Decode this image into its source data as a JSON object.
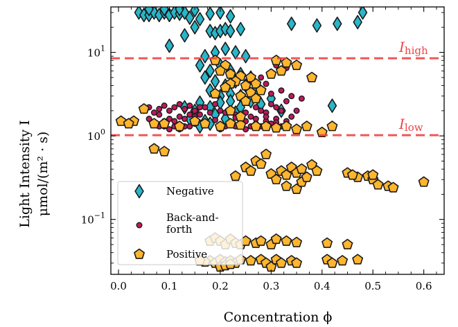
{
  "chart_data": {
    "type": "scatter",
    "xlabel": "Concentration ϕ",
    "ylabel_line1": "Light Intensity I",
    "ylabel_line2": "μmol/(m² · s)",
    "xlim": [
      -0.015,
      0.64
    ],
    "ylim": [
      0.022,
      35
    ],
    "yscale": "log",
    "grid": false,
    "legend_position": "bottom-left",
    "x_ticks": [
      0.0,
      0.1,
      0.2,
      0.3,
      0.4,
      0.5,
      0.6
    ],
    "x_tick_labels": [
      "0.0",
      "0.1",
      "0.2",
      "0.3",
      "0.4",
      "0.5",
      "0.6"
    ],
    "y_ticks": [
      0.1,
      1,
      10
    ],
    "y_tick_labels": [
      {
        "base": "10",
        "exp": "−1"
      },
      {
        "base": "10",
        "exp": "0"
      },
      {
        "base": "10",
        "exp": "1"
      }
    ],
    "reference_lines": [
      {
        "name": "I",
        "sub": "high",
        "y": 8.5,
        "color": "#ee4444"
      },
      {
        "name": "I",
        "sub": "low",
        "y": 1.02,
        "color": "#ee4444"
      }
    ],
    "series": [
      {
        "name": "Negative",
        "marker": "diamond",
        "color": "#29b6c9",
        "edge": "#1a1a1a",
        "points": [
          [
            0.04,
            30
          ],
          [
            0.05,
            28
          ],
          [
            0.06,
            28
          ],
          [
            0.07,
            30
          ],
          [
            0.08,
            28
          ],
          [
            0.09,
            30
          ],
          [
            0.1,
            28
          ],
          [
            0.11,
            30
          ],
          [
            0.12,
            29
          ],
          [
            0.13,
            30
          ],
          [
            0.06,
            33
          ],
          [
            0.09,
            33
          ],
          [
            0.12,
            33
          ],
          [
            0.15,
            32
          ],
          [
            0.14,
            26
          ],
          [
            0.16,
            25
          ],
          [
            0.18,
            29
          ],
          [
            0.2,
            30
          ],
          [
            0.22,
            27
          ],
          [
            0.1,
            12
          ],
          [
            0.15,
            20
          ],
          [
            0.18,
            18
          ],
          [
            0.19,
            17
          ],
          [
            0.2,
            18
          ],
          [
            0.21,
            19
          ],
          [
            0.22,
            18
          ],
          [
            0.24,
            19
          ],
          [
            0.13,
            16
          ],
          [
            0.17,
            9
          ],
          [
            0.19,
            10
          ],
          [
            0.21,
            11
          ],
          [
            0.23,
            10
          ],
          [
            0.25,
            9
          ],
          [
            0.16,
            7
          ],
          [
            0.18,
            6
          ],
          [
            0.2,
            7
          ],
          [
            0.22,
            6
          ],
          [
            0.24,
            5.5
          ],
          [
            0.26,
            5
          ],
          [
            0.17,
            5
          ],
          [
            0.19,
            4.5
          ],
          [
            0.21,
            4
          ],
          [
            0.23,
            4.5
          ],
          [
            0.25,
            4
          ],
          [
            0.27,
            3.5
          ],
          [
            0.18,
            3.5
          ],
          [
            0.2,
            3
          ],
          [
            0.22,
            3.2
          ],
          [
            0.24,
            3
          ],
          [
            0.26,
            2.6
          ],
          [
            0.28,
            2.4
          ],
          [
            0.16,
            2.5
          ],
          [
            0.18,
            2.2
          ],
          [
            0.2,
            2.5
          ],
          [
            0.22,
            2.6
          ],
          [
            0.19,
            1.8
          ],
          [
            0.21,
            1.6
          ],
          [
            0.23,
            1.9
          ],
          [
            0.17,
            1.5
          ],
          [
            0.15,
            2.0
          ],
          [
            0.14,
            1.6
          ],
          [
            0.13,
            2.2
          ],
          [
            0.16,
            1.3
          ],
          [
            0.18,
            1.4
          ],
          [
            0.24,
            2.2
          ],
          [
            0.3,
            2.8
          ],
          [
            0.32,
            2.0
          ],
          [
            0.34,
            22
          ],
          [
            0.39,
            21
          ],
          [
            0.43,
            22
          ],
          [
            0.47,
            23
          ],
          [
            0.48,
            30
          ],
          [
            0.42,
            2.3
          ]
        ]
      },
      {
        "name": "Back-and-forth",
        "legend_label_lines": [
          "Back-and-",
          "forth"
        ],
        "marker": "circle",
        "color": "#c2185b",
        "edge": "#1a1a1a",
        "points": [
          [
            0.05,
            2.0
          ],
          [
            0.06,
            2.2
          ],
          [
            0.07,
            1.9
          ],
          [
            0.08,
            2.1
          ],
          [
            0.09,
            2.3
          ],
          [
            0.1,
            2.0
          ],
          [
            0.11,
            2.2
          ],
          [
            0.12,
            2.4
          ],
          [
            0.13,
            2.1
          ],
          [
            0.14,
            2.3
          ],
          [
            0.15,
            2.0
          ],
          [
            0.16,
            2.2
          ],
          [
            0.1,
            1.6
          ],
          [
            0.11,
            1.5
          ],
          [
            0.12,
            1.7
          ],
          [
            0.13,
            1.6
          ],
          [
            0.14,
            1.8
          ],
          [
            0.15,
            1.7
          ],
          [
            0.09,
            1.3
          ],
          [
            0.1,
            1.2
          ],
          [
            0.11,
            1.3
          ],
          [
            0.12,
            1.2
          ],
          [
            0.13,
            1.3
          ],
          [
            0.07,
            1.4
          ],
          [
            0.08,
            1.3
          ],
          [
            0.09,
            1.5
          ],
          [
            0.06,
            1.6
          ],
          [
            0.08,
            1.8
          ],
          [
            0.2,
            2.0
          ],
          [
            0.21,
            1.9
          ],
          [
            0.22,
            2.1
          ],
          [
            0.23,
            1.8
          ],
          [
            0.24,
            1.6
          ],
          [
            0.25,
            1.5
          ],
          [
            0.26,
            1.7
          ],
          [
            0.27,
            1.4
          ],
          [
            0.28,
            1.3
          ],
          [
            0.29,
            1.5
          ],
          [
            0.3,
            1.4
          ],
          [
            0.31,
            1.6
          ],
          [
            0.25,
            1.2
          ],
          [
            0.26,
            1.3
          ],
          [
            0.24,
            1.4
          ],
          [
            0.23,
            1.3
          ],
          [
            0.22,
            1.4
          ],
          [
            0.21,
            1.3
          ],
          [
            0.2,
            1.2
          ],
          [
            0.27,
            2.2
          ],
          [
            0.28,
            2.0
          ],
          [
            0.29,
            1.9
          ],
          [
            0.3,
            2.4
          ],
          [
            0.31,
            2.2
          ],
          [
            0.32,
            2.0
          ],
          [
            0.33,
            2.6
          ],
          [
            0.3,
            3.2
          ],
          [
            0.32,
            3.5
          ],
          [
            0.34,
            3.0
          ],
          [
            0.33,
            1.5
          ],
          [
            0.34,
            1.7
          ],
          [
            0.35,
            2.0
          ],
          [
            0.36,
            2.8
          ],
          [
            0.31,
            7.0
          ],
          [
            0.33,
            6.5
          ],
          [
            0.35,
            7.2
          ],
          [
            0.26,
            4.5
          ],
          [
            0.28,
            5.0
          ],
          [
            0.29,
            4.2
          ],
          [
            0.18,
            1.9
          ],
          [
            0.17,
            2.2
          ],
          [
            0.16,
            1.8
          ],
          [
            0.15,
            1.4
          ],
          [
            0.14,
            1.3
          ],
          [
            0.19,
            2.4
          ],
          [
            0.25,
            1.9
          ],
          [
            0.27,
            1.6
          ],
          [
            0.29,
            1.7
          ],
          [
            0.32,
            1.3
          ],
          [
            0.19,
            1.55
          ],
          [
            0.23,
            1.65
          ],
          [
            0.31,
            1.45
          ]
        ]
      },
      {
        "name": "Positive",
        "marker": "pentagon",
        "color": "#ffb52e",
        "edge": "#1a1a1a",
        "points": [
          [
            0.005,
            1.5
          ],
          [
            0.03,
            1.5
          ],
          [
            0.05,
            2.1
          ],
          [
            0.07,
            1.4
          ],
          [
            0.09,
            1.4
          ],
          [
            0.02,
            1.4
          ],
          [
            0.12,
            1.3
          ],
          [
            0.15,
            1.5
          ],
          [
            0.17,
            1.4
          ],
          [
            0.2,
            1.3
          ],
          [
            0.22,
            1.4
          ],
          [
            0.24,
            1.35
          ],
          [
            0.27,
            1.3
          ],
          [
            0.29,
            1.3
          ],
          [
            0.31,
            1.25
          ],
          [
            0.33,
            1.3
          ],
          [
            0.35,
            1.2
          ],
          [
            0.37,
            1.3
          ],
          [
            0.4,
            1.1
          ],
          [
            0.42,
            1.3
          ],
          [
            0.07,
            0.7
          ],
          [
            0.09,
            0.65
          ],
          [
            0.31,
            8.0
          ],
          [
            0.33,
            7.5
          ],
          [
            0.35,
            7.0
          ],
          [
            0.3,
            5.5
          ],
          [
            0.32,
            6.0
          ],
          [
            0.38,
            5.0
          ],
          [
            0.19,
            8.0
          ],
          [
            0.21,
            7.0
          ],
          [
            0.2,
            6.0
          ],
          [
            0.22,
            5.5
          ],
          [
            0.24,
            5.2
          ],
          [
            0.26,
            5.0
          ],
          [
            0.23,
            4.5
          ],
          [
            0.25,
            4.0
          ],
          [
            0.27,
            4.2
          ],
          [
            0.22,
            4.2
          ],
          [
            0.28,
            3.5
          ],
          [
            0.21,
            3.8
          ],
          [
            0.19,
            3.2
          ],
          [
            0.24,
            3.0
          ],
          [
            0.26,
            3.3
          ],
          [
            0.25,
            2.6
          ],
          [
            0.27,
            2.8
          ],
          [
            0.22,
            2.0
          ],
          [
            0.24,
            1.7
          ],
          [
            0.23,
            0.33
          ],
          [
            0.25,
            0.42
          ],
          [
            0.26,
            0.38
          ],
          [
            0.27,
            0.5
          ],
          [
            0.28,
            0.46
          ],
          [
            0.3,
            0.35
          ],
          [
            0.31,
            0.3
          ],
          [
            0.32,
            0.38
          ],
          [
            0.33,
            0.34
          ],
          [
            0.34,
            0.42
          ],
          [
            0.35,
            0.36
          ],
          [
            0.36,
            0.28
          ],
          [
            0.37,
            0.32
          ],
          [
            0.38,
            0.45
          ],
          [
            0.39,
            0.38
          ],
          [
            0.33,
            0.25
          ],
          [
            0.35,
            0.23
          ],
          [
            0.45,
            0.36
          ],
          [
            0.47,
            0.32
          ],
          [
            0.49,
            0.33
          ],
          [
            0.5,
            0.3
          ],
          [
            0.51,
            0.26
          ],
          [
            0.53,
            0.25
          ],
          [
            0.54,
            0.24
          ],
          [
            0.6,
            0.28
          ],
          [
            0.5,
            0.34
          ],
          [
            0.46,
            0.34
          ],
          [
            0.29,
            0.6
          ],
          [
            0.36,
            0.4
          ],
          [
            0.18,
            0.055
          ],
          [
            0.19,
            0.06
          ],
          [
            0.2,
            0.055
          ],
          [
            0.21,
            0.05
          ],
          [
            0.22,
            0.058
          ],
          [
            0.23,
            0.052
          ],
          [
            0.24,
            0.05
          ],
          [
            0.25,
            0.055
          ],
          [
            0.27,
            0.052
          ],
          [
            0.28,
            0.055
          ],
          [
            0.3,
            0.05
          ],
          [
            0.31,
            0.058
          ],
          [
            0.33,
            0.055
          ],
          [
            0.35,
            0.053
          ],
          [
            0.41,
            0.052
          ],
          [
            0.45,
            0.05
          ],
          [
            0.18,
            0.032
          ],
          [
            0.19,
            0.03
          ],
          [
            0.2,
            0.033
          ],
          [
            0.21,
            0.031
          ],
          [
            0.22,
            0.032
          ],
          [
            0.23,
            0.03
          ],
          [
            0.24,
            0.033
          ],
          [
            0.26,
            0.032
          ],
          [
            0.28,
            0.033
          ],
          [
            0.29,
            0.03
          ],
          [
            0.3,
            0.027
          ],
          [
            0.31,
            0.033
          ],
          [
            0.32,
            0.03
          ],
          [
            0.34,
            0.032
          ],
          [
            0.35,
            0.03
          ],
          [
            0.41,
            0.033
          ],
          [
            0.42,
            0.03
          ],
          [
            0.44,
            0.032
          ],
          [
            0.47,
            0.033
          ],
          [
            0.17,
            0.031
          ],
          [
            0.16,
            0.032
          ],
          [
            0.2,
            0.027
          ],
          [
            0.21,
            0.028
          ],
          [
            0.22,
            0.029
          ]
        ]
      }
    ]
  }
}
